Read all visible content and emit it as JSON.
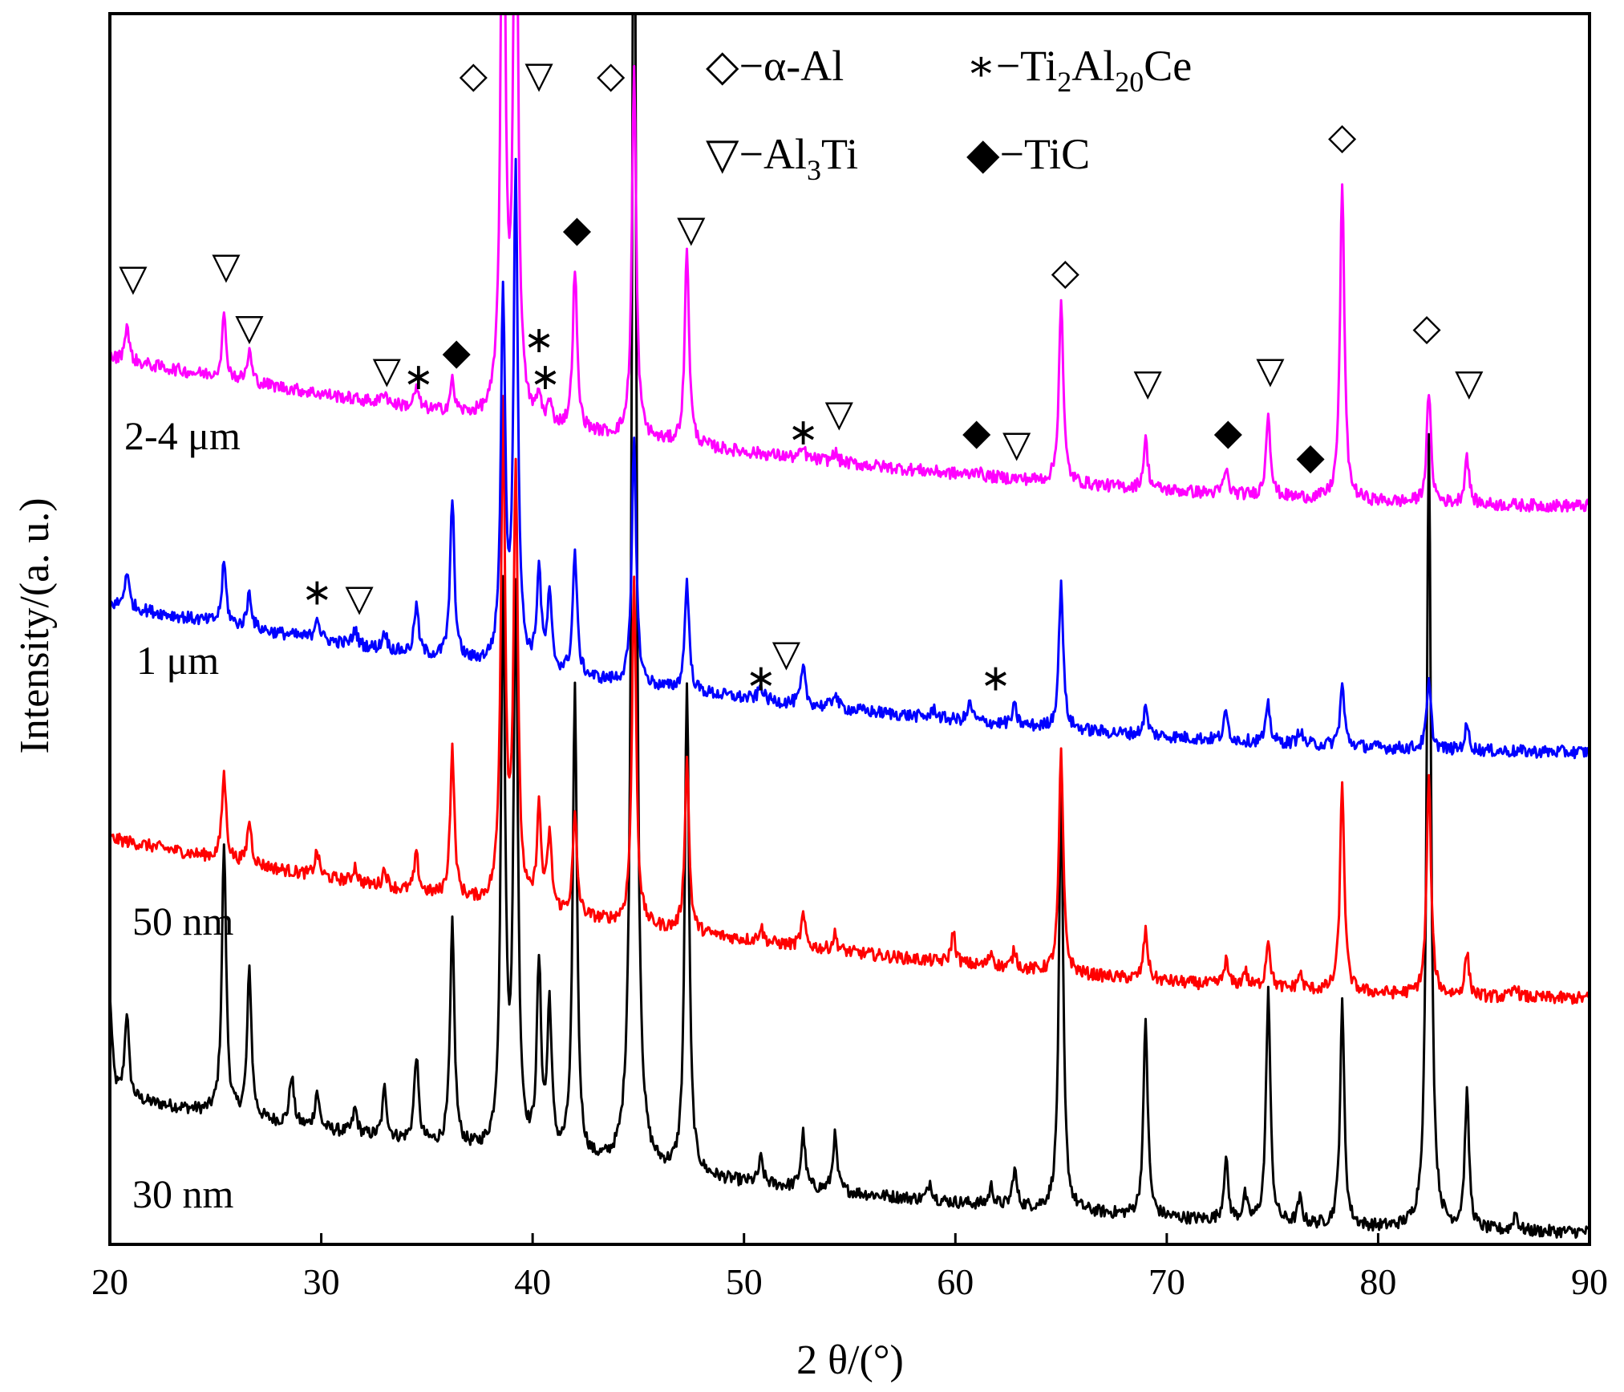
{
  "chart_data": {
    "type": "line",
    "title": "",
    "xlabel": "2 θ/(°)",
    "ylabel": "Intensity/(a. u.)",
    "xlim": [
      20,
      90
    ],
    "ylim": [
      0,
      100
    ],
    "x_ticks": [
      20,
      30,
      40,
      50,
      60,
      70,
      80,
      90
    ],
    "y_ticks_visible": false,
    "grid": false,
    "legend": [
      {
        "symbol": "◇",
        "name": "−α-Al",
        "text": "◇−α-Al"
      },
      {
        "symbol": "∗",
        "name": "−Ti₂Al₂₀Ce",
        "text": "∗−Ti",
        "sub1": "2",
        "mid": "Al",
        "sub2": "20",
        "tail": "Ce"
      },
      {
        "symbol": "▽",
        "name": "−Al₃Ti",
        "text": "▽−Al",
        "sub1": "3",
        "tail": "Ti"
      },
      {
        "symbol": "◆",
        "name": "−TiC",
        "text": "◆−TiC"
      }
    ],
    "series": [
      {
        "name": "2-4 μm",
        "color": "#ff00ff",
        "baseline_start": 72,
        "baseline_end": 60,
        "peaks": [
          [
            20.8,
            3
          ],
          [
            25.4,
            5
          ],
          [
            26.6,
            2.5
          ],
          [
            33,
            1
          ],
          [
            34.5,
            1.6
          ],
          [
            36.2,
            2.5
          ],
          [
            38.6,
            55
          ],
          [
            39.2,
            55
          ],
          [
            40.3,
            2
          ],
          [
            40.8,
            1.6
          ],
          [
            42,
            13
          ],
          [
            44.8,
            30
          ],
          [
            47.3,
            16
          ],
          [
            52.8,
            0.8
          ],
          [
            54.3,
            0.8
          ],
          [
            61,
            0.6
          ],
          [
            65,
            15
          ],
          [
            69,
            4
          ],
          [
            72.8,
            2
          ],
          [
            74.8,
            7
          ],
          [
            78.3,
            26
          ],
          [
            82.4,
            9
          ],
          [
            84.2,
            4
          ]
        ]
      },
      {
        "name": "1 μm",
        "color": "#0000ff",
        "baseline_start": 52,
        "baseline_end": 40,
        "peaks": [
          [
            20.8,
            3
          ],
          [
            25.4,
            5
          ],
          [
            26.6,
            3
          ],
          [
            29.8,
            2
          ],
          [
            31.6,
            1.3
          ],
          [
            33,
            1.5
          ],
          [
            34.5,
            4
          ],
          [
            36.2,
            13
          ],
          [
            38.6,
            30
          ],
          [
            39.2,
            40
          ],
          [
            40.3,
            8
          ],
          [
            40.8,
            6
          ],
          [
            42,
            10
          ],
          [
            44.8,
            20
          ],
          [
            47.3,
            9
          ],
          [
            50.8,
            1.2
          ],
          [
            52.8,
            3
          ],
          [
            54.3,
            1.3
          ],
          [
            59,
            0.8
          ],
          [
            60.7,
            1.5
          ],
          [
            62.8,
            1.5
          ],
          [
            65,
            12
          ],
          [
            69,
            2.2
          ],
          [
            72.8,
            2.2
          ],
          [
            74.8,
            3
          ],
          [
            76.3,
            1.2
          ],
          [
            78.3,
            5
          ],
          [
            82.4,
            5.5
          ],
          [
            84.2,
            2
          ]
        ]
      },
      {
        "name": "50 nm",
        "color": "#ff0000",
        "baseline_start": 33,
        "baseline_end": 20,
        "peaks": [
          [
            25.4,
            7
          ],
          [
            26.6,
            3.5
          ],
          [
            29.8,
            2
          ],
          [
            31.6,
            1.3
          ],
          [
            33,
            1.5
          ],
          [
            34.5,
            3
          ],
          [
            36.2,
            12
          ],
          [
            38.6,
            40
          ],
          [
            39.2,
            35
          ],
          [
            40.3,
            8
          ],
          [
            40.8,
            6
          ],
          [
            42,
            8
          ],
          [
            44.8,
            28
          ],
          [
            47.3,
            14
          ],
          [
            50.8,
            1.2
          ],
          [
            52.8,
            2.5
          ],
          [
            54.3,
            1.3
          ],
          [
            59.9,
            2.5
          ],
          [
            61.7,
            1.2
          ],
          [
            62.8,
            1.5
          ],
          [
            65,
            18
          ],
          [
            69,
            4
          ],
          [
            72.8,
            2
          ],
          [
            73.7,
            1.3
          ],
          [
            74.8,
            4
          ],
          [
            76.3,
            1.3
          ],
          [
            78.3,
            17
          ],
          [
            82.4,
            18
          ],
          [
            84.2,
            3.5
          ],
          [
            86.5,
            1
          ]
        ]
      },
      {
        "name": "30 nm",
        "color": "#000000",
        "baseline_start": 12,
        "baseline_end": 1,
        "peaks": [
          [
            20,
            8
          ],
          [
            20.8,
            7
          ],
          [
            25.4,
            22
          ],
          [
            26.6,
            12
          ],
          [
            28.6,
            4
          ],
          [
            29.8,
            3
          ],
          [
            31.6,
            2
          ],
          [
            33,
            4
          ],
          [
            34.5,
            7
          ],
          [
            36.2,
            18
          ],
          [
            38.6,
            45
          ],
          [
            39.2,
            45
          ],
          [
            40.3,
            15
          ],
          [
            40.8,
            12
          ],
          [
            42,
            38
          ],
          [
            44.8,
            120
          ],
          [
            47.3,
            40
          ],
          [
            50.8,
            2
          ],
          [
            52.8,
            4.5
          ],
          [
            54.3,
            4.5
          ],
          [
            58.8,
            1.5
          ],
          [
            61.7,
            1.5
          ],
          [
            62.8,
            3
          ],
          [
            65,
            34
          ],
          [
            69,
            16
          ],
          [
            72.8,
            5
          ],
          [
            73.7,
            2
          ],
          [
            74.8,
            19
          ],
          [
            76.3,
            2
          ],
          [
            78.3,
            18
          ],
          [
            82.4,
            65
          ],
          [
            84.2,
            11
          ],
          [
            86.5,
            1.5
          ]
        ]
      }
    ],
    "annotations": [
      {
        "symbol": "◇",
        "x": 37.2,
        "y": 94
      },
      {
        "symbol": "▽",
        "x": 40.3,
        "y": 94
      },
      {
        "symbol": "◇",
        "x": 43.7,
        "y": 94
      },
      {
        "symbol": "◇",
        "x": 78.3,
        "y": 89
      },
      {
        "symbol": "▽",
        "x": 21.1,
        "y": 77.5
      },
      {
        "symbol": "▽",
        "x": 25.5,
        "y": 78.5
      },
      {
        "symbol": "▽",
        "x": 26.6,
        "y": 73.5
      },
      {
        "symbol": "▽",
        "x": 33.1,
        "y": 70
      },
      {
        "symbol": "∗",
        "x": 34.6,
        "y": 69.5
      },
      {
        "symbol": "◆",
        "x": 36.4,
        "y": 71.5
      },
      {
        "symbol": "∗",
        "x": 40.3,
        "y": 72.5
      },
      {
        "symbol": "∗",
        "x": 40.6,
        "y": 69.5
      },
      {
        "symbol": "◆",
        "x": 42.1,
        "y": 81.5
      },
      {
        "symbol": "▽",
        "x": 47.5,
        "y": 81.5
      },
      {
        "symbol": "∗",
        "x": 52.8,
        "y": 65
      },
      {
        "symbol": "▽",
        "x": 54.5,
        "y": 66.5
      },
      {
        "symbol": "◆",
        "x": 61,
        "y": 65
      },
      {
        "symbol": "▽",
        "x": 62.9,
        "y": 64
      },
      {
        "symbol": "◇",
        "x": 65.2,
        "y": 78
      },
      {
        "symbol": "▽",
        "x": 69.1,
        "y": 69
      },
      {
        "symbol": "◆",
        "x": 72.9,
        "y": 65
      },
      {
        "symbol": "▽",
        "x": 74.9,
        "y": 70
      },
      {
        "symbol": "◆",
        "x": 76.8,
        "y": 63
      },
      {
        "symbol": "◇",
        "x": 82.3,
        "y": 73.5
      },
      {
        "symbol": "▽",
        "x": 84.3,
        "y": 69
      },
      {
        "symbol": "∗",
        "x": 29.8,
        "y": 52
      },
      {
        "symbol": "▽",
        "x": 31.8,
        "y": 51.5
      },
      {
        "symbol": "∗",
        "x": 50.8,
        "y": 45
      },
      {
        "symbol": "▽",
        "x": 52,
        "y": 47
      },
      {
        "symbol": "∗",
        "x": 61.9,
        "y": 45
      }
    ]
  }
}
